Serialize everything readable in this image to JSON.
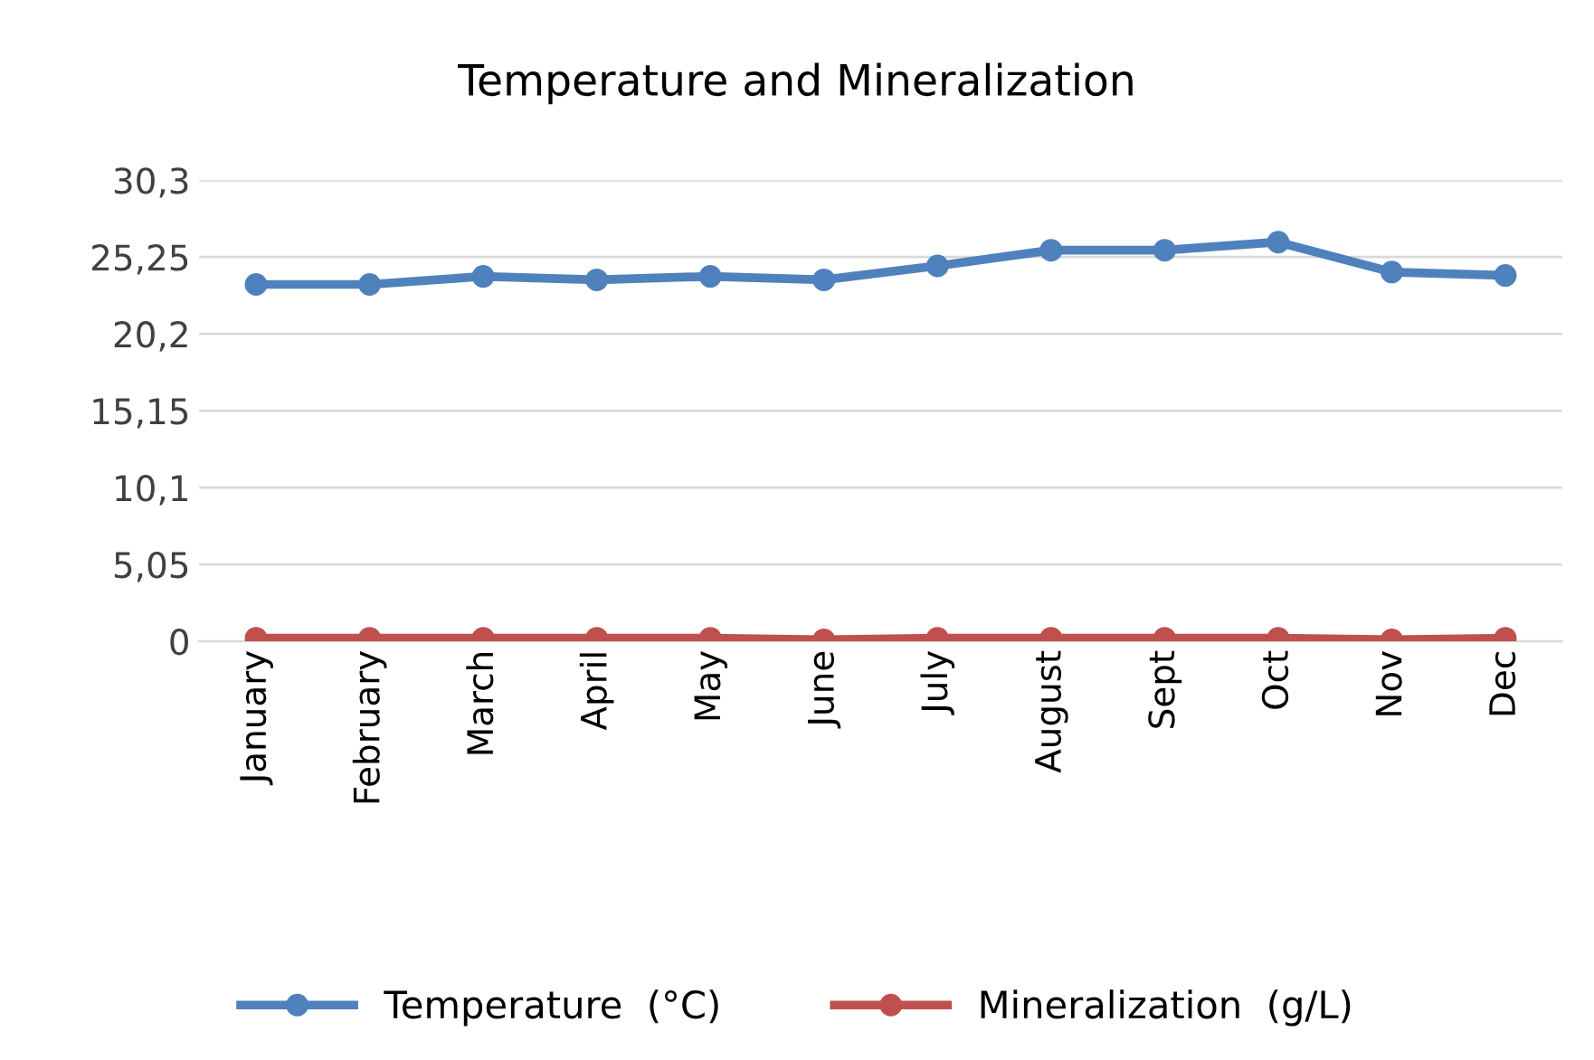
{
  "chart_data": {
    "type": "line",
    "title": "Temperature and Mineralization",
    "categories": [
      "January",
      "February",
      "March",
      "April",
      "May",
      "June",
      "July",
      "August",
      "Sept",
      "Oct",
      "Nov",
      "Dec"
    ],
    "series": [
      {
        "name": "Temperature  (°C)",
        "color": "#4f81bd",
        "values": [
          23.45,
          23.45,
          23.98,
          23.75,
          23.98,
          23.75,
          24.67,
          25.7,
          25.7,
          26.23,
          24.26,
          24.04
        ]
      },
      {
        "name": "Mineralization  (g/L)",
        "color": "#c0504d",
        "values": [
          0.2,
          0.2,
          0.2,
          0.2,
          0.2,
          0.1,
          0.2,
          0.2,
          0.2,
          0.2,
          0.1,
          0.2
        ]
      }
    ],
    "ylim": [
      0,
      30.3
    ],
    "yticks": [
      {
        "value": 0,
        "label": "0"
      },
      {
        "value": 5.05,
        "label": "5,05"
      },
      {
        "value": 10.1,
        "label": "10,1"
      },
      {
        "value": 15.15,
        "label": "15,15"
      },
      {
        "value": 20.2,
        "label": "20,2"
      },
      {
        "value": 25.25,
        "label": "25,25"
      },
      {
        "value": 30.3,
        "label": "30,3"
      }
    ],
    "grid": "y",
    "legend": "bottom",
    "marker": "circle",
    "line_style": "solid"
  }
}
